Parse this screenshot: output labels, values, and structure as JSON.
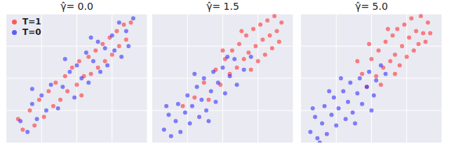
{
  "chart_data": [
    {
      "type": "scatter",
      "title": "γ̂= 0.0",
      "xlim": [
        -3,
        3
      ],
      "ylim": [
        -3,
        3
      ],
      "xticks": [
        -3,
        -1.5,
        0,
        1.5,
        3
      ],
      "yticks": [
        -3,
        -1.5,
        0,
        1.5,
        3
      ],
      "grid": true,
      "tick_labels": false,
      "legend": "upper left",
      "series": [
        {
          "name": "T=1",
          "color": "#ff2020",
          "values": [
            [
              -2.3,
              -2.4
            ],
            [
              -2.0,
              -1.5
            ],
            [
              -1.8,
              -2.2
            ],
            [
              -1.6,
              -1.0
            ],
            [
              -1.4,
              -1.8
            ],
            [
              -1.2,
              -0.6
            ],
            [
              -1.0,
              -1.3
            ],
            [
              -0.9,
              -0.2
            ],
            [
              -0.7,
              -1.0
            ],
            [
              -0.5,
              0.1
            ],
            [
              -0.4,
              -0.6
            ],
            [
              -0.2,
              0.5
            ],
            [
              0.0,
              -0.3
            ],
            [
              0.1,
              0.8
            ],
            [
              0.3,
              0.1
            ],
            [
              0.5,
              1.0
            ],
            [
              0.6,
              0.2
            ],
            [
              0.8,
              1.3
            ],
            [
              0.9,
              0.5
            ],
            [
              1.1,
              1.6
            ],
            [
              1.2,
              0.8
            ],
            [
              1.4,
              1.9
            ],
            [
              1.5,
              1.1
            ],
            [
              1.7,
              2.2
            ],
            [
              1.8,
              1.5
            ],
            [
              2.0,
              2.5
            ],
            [
              2.1,
              1.8
            ],
            [
              2.3,
              2.6
            ],
            [
              -2.5,
              -1.9
            ],
            [
              0.2,
              -0.8
            ]
          ]
        },
        {
          "name": "T=0",
          "color": "#2020ff",
          "values": [
            [
              -2.4,
              -2.0
            ],
            [
              -2.1,
              -2.5
            ],
            [
              -1.9,
              -1.2
            ],
            [
              -1.7,
              -1.9
            ],
            [
              -1.5,
              -0.8
            ],
            [
              -1.3,
              -1.5
            ],
            [
              -1.1,
              -0.3
            ],
            [
              -0.8,
              -1.4
            ],
            [
              -0.6,
              -0.4
            ],
            [
              -0.3,
              0.3
            ],
            [
              -0.1,
              -0.9
            ],
            [
              0.0,
              0.6
            ],
            [
              0.2,
              0.0
            ],
            [
              0.4,
              1.2
            ],
            [
              0.5,
              -0.2
            ],
            [
              0.7,
              0.8
            ],
            [
              0.9,
              1.7
            ],
            [
              1.0,
              0.3
            ],
            [
              1.2,
              1.4
            ],
            [
              1.3,
              0.6
            ],
            [
              1.5,
              2.0
            ],
            [
              1.6,
              1.3
            ],
            [
              1.8,
              2.6
            ],
            [
              1.9,
              1.0
            ],
            [
              2.1,
              2.2
            ],
            [
              2.2,
              1.5
            ],
            [
              2.4,
              2.8
            ],
            [
              -0.5,
              0.9
            ],
            [
              0.6,
              1.9
            ],
            [
              -1.9,
              -0.5
            ]
          ]
        }
      ]
    },
    {
      "type": "scatter",
      "title": "γ̂= 1.5",
      "xlim": [
        -3,
        3
      ],
      "ylim": [
        -3,
        3
      ],
      "xticks": [
        -3,
        -1.5,
        0,
        1.5,
        3
      ],
      "yticks": [
        -3,
        -1.5,
        0,
        1.5,
        3
      ],
      "grid": true,
      "tick_labels": false,
      "series": [
        {
          "color": "#ff2020",
          "values": [
            [
              -1.2,
              -0.9
            ],
            [
              -0.8,
              -0.2
            ],
            [
              -0.6,
              -1.0
            ],
            [
              -0.3,
              0.4
            ],
            [
              -0.1,
              -0.3
            ],
            [
              0.1,
              0.9
            ],
            [
              0.3,
              0.2
            ],
            [
              0.4,
              1.3
            ],
            [
              0.6,
              0.5
            ],
            [
              0.7,
              1.6
            ],
            [
              0.9,
              0.9
            ],
            [
              1.0,
              2.0
            ],
            [
              1.1,
              1.2
            ],
            [
              1.3,
              2.3
            ],
            [
              1.4,
              1.5
            ],
            [
              1.5,
              0.8
            ],
            [
              1.6,
              2.5
            ],
            [
              1.7,
              1.8
            ],
            [
              1.8,
              1.1
            ],
            [
              1.9,
              2.7
            ],
            [
              2.0,
              2.0
            ],
            [
              2.1,
              1.4
            ],
            [
              2.2,
              2.9
            ],
            [
              2.3,
              2.2
            ],
            [
              2.4,
              1.7
            ],
            [
              2.5,
              2.6
            ],
            [
              0.8,
              2.2
            ],
            [
              1.2,
              0.4
            ],
            [
              -1.7,
              -1.3
            ],
            [
              0.0,
              1.3
            ]
          ]
        },
        {
          "color": "#2020ff",
          "values": [
            [
              -2.5,
              -2.4
            ],
            [
              -2.3,
              -1.7
            ],
            [
              -2.2,
              -2.7
            ],
            [
              -2.0,
              -2.0
            ],
            [
              -1.9,
              -1.2
            ],
            [
              -1.8,
              -2.5
            ],
            [
              -1.6,
              -1.6
            ],
            [
              -1.5,
              -0.8
            ],
            [
              -1.4,
              -2.1
            ],
            [
              -1.3,
              -1.3
            ],
            [
              -1.1,
              -0.4
            ],
            [
              -1.0,
              -1.8
            ],
            [
              -0.9,
              -1.0
            ],
            [
              -0.8,
              0.0
            ],
            [
              -0.7,
              -1.5
            ],
            [
              -0.5,
              -0.6
            ],
            [
              -0.4,
              0.3
            ],
            [
              -0.3,
              -1.1
            ],
            [
              -0.2,
              -0.2
            ],
            [
              0.0,
              0.5
            ],
            [
              0.1,
              -0.7
            ],
            [
              0.3,
              0.1
            ],
            [
              0.5,
              0.9
            ],
            [
              0.6,
              -0.3
            ],
            [
              0.9,
              0.4
            ],
            [
              -2.4,
              -1.3
            ],
            [
              -1.2,
              0.2
            ],
            [
              0.2,
              1.0
            ],
            [
              -0.6,
              -2.0
            ],
            [
              1.2,
              1.0
            ]
          ]
        }
      ]
    },
    {
      "type": "scatter",
      "title": "γ̂= 5.0",
      "xlim": [
        -3,
        3
      ],
      "ylim": [
        -3,
        3
      ],
      "xticks": [
        -3,
        -1.5,
        0,
        1.5,
        3
      ],
      "yticks": [
        -3,
        -1.5,
        0,
        1.5,
        3
      ],
      "grid": true,
      "tick_labels": false,
      "series": [
        {
          "color": "#ff2020",
          "values": [
            [
              -0.4,
              0.2
            ],
            [
              -0.2,
              -0.4
            ],
            [
              0.0,
              0.9
            ],
            [
              0.2,
              0.1
            ],
            [
              0.3,
              1.3
            ],
            [
              0.5,
              0.5
            ],
            [
              0.6,
              1.7
            ],
            [
              0.8,
              0.8
            ],
            [
              0.9,
              2.0
            ],
            [
              1.0,
              1.1
            ],
            [
              1.1,
              2.3
            ],
            [
              1.2,
              0.6
            ],
            [
              1.3,
              1.5
            ],
            [
              1.4,
              2.5
            ],
            [
              1.5,
              1.0
            ],
            [
              1.6,
              1.9
            ],
            [
              1.7,
              2.8
            ],
            [
              1.8,
              1.3
            ],
            [
              1.9,
              2.2
            ],
            [
              2.0,
              1.6
            ],
            [
              2.1,
              2.9
            ],
            [
              2.2,
              2.1
            ],
            [
              2.3,
              1.7
            ],
            [
              2.4,
              2.6
            ],
            [
              2.5,
              2.1
            ],
            [
              0.7,
              2.3
            ],
            [
              -0.6,
              0.8
            ],
            [
              1.0,
              0.2
            ],
            [
              -0.1,
              1.6
            ],
            [
              0.4,
              -0.3
            ]
          ]
        },
        {
          "color": "#2020ff",
          "values": [
            [
              -2.6,
              -2.5
            ],
            [
              -2.4,
              -1.8
            ],
            [
              -2.3,
              -2.8
            ],
            [
              -2.1,
              -2.1
            ],
            [
              -2.0,
              -1.3
            ],
            [
              -1.9,
              -2.6
            ],
            [
              -1.7,
              -1.7
            ],
            [
              -1.6,
              -0.9
            ],
            [
              -1.5,
              -2.2
            ],
            [
              -1.4,
              -1.4
            ],
            [
              -1.2,
              -0.6
            ],
            [
              -1.1,
              -1.9
            ],
            [
              -1.0,
              -1.1
            ],
            [
              -0.9,
              -0.2
            ],
            [
              -0.8,
              -1.6
            ],
            [
              -0.6,
              -0.7
            ],
            [
              -0.5,
              0.0
            ],
            [
              -0.4,
              -1.2
            ],
            [
              -0.2,
              -0.4
            ],
            [
              -0.1,
              0.3
            ],
            [
              0.1,
              -0.8
            ],
            [
              0.2,
              -0.1
            ],
            [
              0.4,
              0.6
            ],
            [
              -2.5,
              -1.4
            ],
            [
              -1.3,
              0.0
            ],
            [
              -0.7,
              -2.1
            ],
            [
              0.6,
              0.2
            ],
            [
              -1.8,
              -0.6
            ],
            [
              -2.2,
              -3.0
            ],
            [
              0.0,
              -1.5
            ]
          ]
        }
      ]
    }
  ]
}
